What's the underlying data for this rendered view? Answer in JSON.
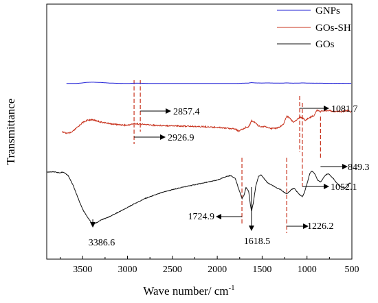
{
  "chart_data": {
    "type": "line",
    "title": "",
    "xlabel": "Wave number/ cm",
    "xlabel_superscript": "-1",
    "ylabel": "Transmittance",
    "xlim": [
      3900,
      500
    ],
    "x_reversed": true,
    "y_ticks_shown": false,
    "xticks": [
      3500,
      3000,
      2500,
      2000,
      1500,
      1000,
      500
    ],
    "xtick_labels": [
      "3500",
      "3000",
      "2500",
      "2000",
      "1500",
      "1000",
      "500"
    ],
    "legend_position": "top-right",
    "series": [
      {
        "name": "GNPs",
        "color": "#1f1fd6",
        "noise": 0.25,
        "points": [
          [
            3680,
            99
          ],
          [
            3600,
            99
          ],
          [
            3550,
            98
          ],
          [
            3500,
            95
          ],
          [
            3450,
            91
          ],
          [
            3386,
            90
          ],
          [
            3300,
            92
          ],
          [
            3200,
            96
          ],
          [
            3100,
            98
          ],
          [
            3000,
            99
          ],
          [
            2926,
            97
          ],
          [
            2857,
            97
          ],
          [
            2750,
            99
          ],
          [
            2500,
            99
          ],
          [
            2000,
            99
          ],
          [
            1800,
            99
          ],
          [
            1750,
            98
          ],
          [
            1700,
            97
          ],
          [
            1650,
            96
          ],
          [
            1618,
            93
          ],
          [
            1580,
            95
          ],
          [
            1500,
            96
          ],
          [
            1430,
            95
          ],
          [
            1380,
            96
          ],
          [
            1300,
            97
          ],
          [
            1226,
            95
          ],
          [
            1150,
            97
          ],
          [
            1081,
            96
          ],
          [
            1052,
            95
          ],
          [
            950,
            97
          ],
          [
            849,
            97
          ],
          [
            750,
            98
          ],
          [
            600,
            98
          ],
          [
            505,
            98
          ]
        ]
      },
      {
        "name": "GOs-SH",
        "color": "#c8331e",
        "noise": 1.2,
        "points": [
          [
            3730,
            85
          ],
          [
            3700,
            87
          ],
          [
            3660,
            88
          ],
          [
            3620,
            86
          ],
          [
            3580,
            80
          ],
          [
            3540,
            74
          ],
          [
            3500,
            68
          ],
          [
            3450,
            64
          ],
          [
            3420,
            63
          ],
          [
            3386,
            63
          ],
          [
            3300,
            67
          ],
          [
            3200,
            70
          ],
          [
            3100,
            72
          ],
          [
            3000,
            73
          ],
          [
            2926,
            70
          ],
          [
            2857,
            71
          ],
          [
            2700,
            73
          ],
          [
            2500,
            74
          ],
          [
            2300,
            75
          ],
          [
            2100,
            76
          ],
          [
            1900,
            78
          ],
          [
            1800,
            80
          ],
          [
            1760,
            84
          ],
          [
            1724,
            81
          ],
          [
            1680,
            77
          ],
          [
            1650,
            76
          ],
          [
            1618,
            65
          ],
          [
            1580,
            68
          ],
          [
            1540,
            74
          ],
          [
            1500,
            76
          ],
          [
            1470,
            75
          ],
          [
            1430,
            78
          ],
          [
            1400,
            80
          ],
          [
            1380,
            77
          ],
          [
            1350,
            79
          ],
          [
            1300,
            76
          ],
          [
            1260,
            70
          ],
          [
            1226,
            56
          ],
          [
            1190,
            60
          ],
          [
            1150,
            68
          ],
          [
            1110,
            62
          ],
          [
            1081,
            58
          ],
          [
            1052,
            59
          ],
          [
            1020,
            64
          ],
          [
            980,
            60
          ],
          [
            950,
            57
          ],
          [
            920,
            55
          ],
          [
            890,
            45
          ],
          [
            849,
            48
          ],
          [
            820,
            46
          ],
          [
            780,
            47
          ],
          [
            740,
            46
          ],
          [
            700,
            48
          ],
          [
            660,
            47
          ],
          [
            620,
            48
          ],
          [
            580,
            47
          ],
          [
            540,
            46
          ],
          [
            510,
            49
          ]
        ]
      },
      {
        "name": "GOs",
        "color": "#111111",
        "noise": 0.35,
        "points": [
          [
            3900,
            49
          ],
          [
            3800,
            49
          ],
          [
            3760,
            48
          ],
          [
            3720,
            49
          ],
          [
            3700,
            48
          ],
          [
            3660,
            45
          ],
          [
            3600,
            33
          ],
          [
            3550,
            20
          ],
          [
            3500,
            8
          ],
          [
            3450,
            0
          ],
          [
            3400,
            -7
          ],
          [
            3386,
            -8
          ],
          [
            3350,
            -7
          ],
          [
            3300,
            -4
          ],
          [
            3200,
            0
          ],
          [
            3100,
            5
          ],
          [
            3000,
            10
          ],
          [
            2926,
            14
          ],
          [
            2800,
            20
          ],
          [
            2600,
            27
          ],
          [
            2400,
            32
          ],
          [
            2200,
            36
          ],
          [
            2100,
            38
          ],
          [
            2000,
            40
          ],
          [
            1950,
            42
          ],
          [
            1900,
            44
          ],
          [
            1850,
            45
          ],
          [
            1800,
            42
          ],
          [
            1760,
            30
          ],
          [
            1724,
            20
          ],
          [
            1700,
            24
          ],
          [
            1680,
            32
          ],
          [
            1650,
            28
          ],
          [
            1630,
            12
          ],
          [
            1618,
            6
          ],
          [
            1600,
            14
          ],
          [
            1570,
            34
          ],
          [
            1540,
            44
          ],
          [
            1510,
            46
          ],
          [
            1480,
            42
          ],
          [
            1450,
            38
          ],
          [
            1420,
            36
          ],
          [
            1400,
            35
          ],
          [
            1380,
            34
          ],
          [
            1350,
            32
          ],
          [
            1300,
            30
          ],
          [
            1260,
            27
          ],
          [
            1226,
            25
          ],
          [
            1200,
            27
          ],
          [
            1170,
            30
          ],
          [
            1140,
            31
          ],
          [
            1110,
            27
          ],
          [
            1081,
            24
          ],
          [
            1052,
            22
          ],
          [
            1030,
            26
          ],
          [
            1000,
            36
          ],
          [
            970,
            47
          ],
          [
            950,
            50
          ],
          [
            920,
            48
          ],
          [
            880,
            40
          ],
          [
            849,
            38
          ],
          [
            820,
            42
          ],
          [
            790,
            46
          ],
          [
            760,
            47
          ],
          [
            730,
            44
          ],
          [
            700,
            41
          ],
          [
            670,
            37
          ],
          [
            640,
            34
          ],
          [
            610,
            32
          ],
          [
            580,
            31
          ],
          [
            560,
            33
          ],
          [
            540,
            36
          ],
          [
            510,
            37
          ]
        ]
      }
    ],
    "reference_lines": [
      {
        "x": 2926.9,
        "color": "#c8331e"
      },
      {
        "x": 2857.4,
        "color": "#c8331e"
      },
      {
        "x": 1724.9,
        "color": "#c8331e"
      },
      {
        "x": 1226.2,
        "color": "#c8331e"
      },
      {
        "x": 1081.7,
        "color": "#c8331e"
      },
      {
        "x": 1052.1,
        "color": "#c8331e"
      },
      {
        "x": 849.3,
        "color": "#c8331e"
      }
    ],
    "annotations": [
      {
        "label": "2857.4",
        "x": 2857.4,
        "direction": "right"
      },
      {
        "label": "2926.9",
        "x": 2926.9,
        "direction": "right"
      },
      {
        "label": "1081.7",
        "x": 1081.7,
        "direction": "right"
      },
      {
        "label": "849.3",
        "x": 849.3,
        "direction": "right"
      },
      {
        "label": "1052.1",
        "x": 1052.1,
        "direction": "right"
      },
      {
        "label": "1226.2",
        "x": 1226.2,
        "direction": "right"
      },
      {
        "label": "1724.9",
        "x": 1724.9,
        "direction": "left"
      },
      {
        "label": "1618.5",
        "x": 1618.5,
        "direction": "down"
      },
      {
        "label": "3386.6",
        "x": 3386.6,
        "direction": "down"
      }
    ]
  }
}
